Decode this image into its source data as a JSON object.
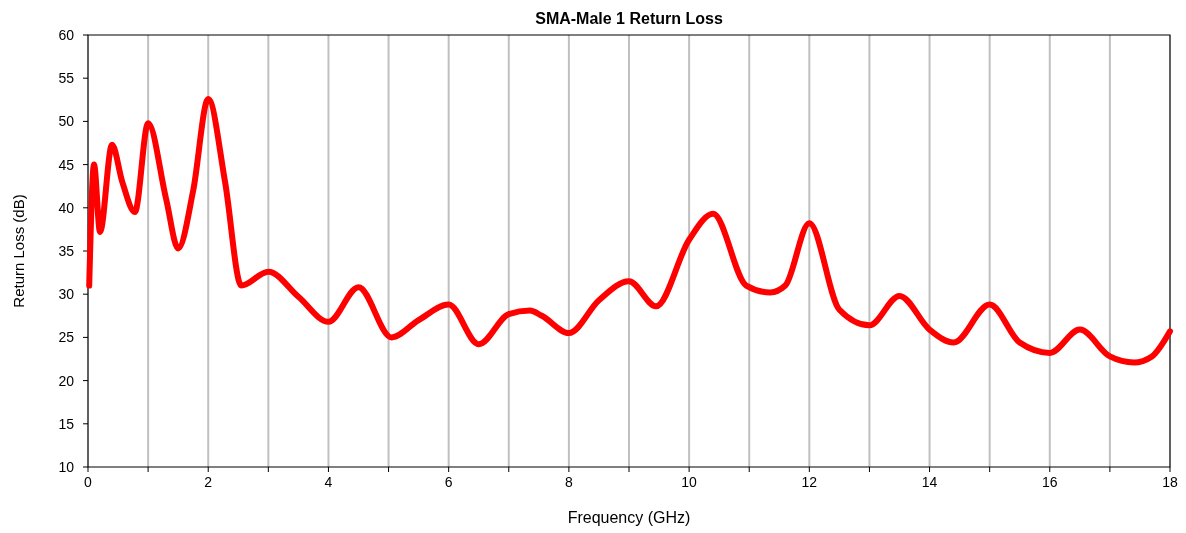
{
  "chart_data": {
    "type": "line",
    "title": "SMA-Male 1 Return Loss",
    "xlabel": "Frequency (GHz)",
    "ylabel": "Return Loss (dB)",
    "xlim": [
      0,
      18
    ],
    "ylim": [
      10,
      60
    ],
    "xticks": [
      0,
      {
        "value": 1,
        "label": null
      },
      2,
      {
        "value": 3,
        "label": null
      },
      4,
      {
        "value": 5,
        "label": null
      },
      6,
      {
        "value": 7,
        "label": null
      },
      8,
      {
        "value": 9,
        "label": null
      },
      10,
      {
        "value": 11,
        "label": null
      },
      12,
      {
        "value": 13,
        "label": null
      },
      14,
      {
        "value": 15,
        "label": null
      },
      16,
      {
        "value": 17,
        "label": null
      },
      18
    ],
    "yticks": [
      10,
      15,
      20,
      25,
      30,
      35,
      40,
      45,
      50,
      55,
      60
    ],
    "grid": "x",
    "marker": "none",
    "line_style": "solid",
    "series": [
      {
        "color": "#ff0000",
        "x": [
          0.02,
          0.1,
          0.2,
          0.4,
          0.57,
          0.78,
          1.0,
          1.3,
          1.5,
          1.75,
          2.0,
          2.28,
          2.55,
          3.0,
          3.5,
          4.0,
          4.5,
          5.05,
          5.5,
          6.0,
          6.5,
          7.0,
          7.35,
          7.55,
          8.0,
          8.5,
          9.0,
          9.45,
          10.0,
          10.4,
          10.95,
          11.35,
          11.6,
          12.0,
          12.5,
          13.0,
          13.5,
          14.0,
          14.4,
          15.0,
          15.5,
          16.0,
          16.5,
          17.0,
          17.4,
          17.7,
          18.0
        ],
        "values": [
          31,
          45,
          37.2,
          47.3,
          43,
          39.5,
          49.8,
          41,
          35.3,
          42,
          52.6,
          43,
          31,
          32.6,
          29.7,
          26.8,
          30.8,
          25,
          27,
          28.8,
          24.2,
          27.7,
          28.1,
          27.5,
          25.5,
          29.3,
          31.5,
          28.6,
          36.3,
          39.3,
          31,
          30.2,
          31,
          38.2,
          28.2,
          26.4,
          29.8,
          25.9,
          24.4,
          28.8,
          24.4,
          23.2,
          25.9,
          22.8,
          22.1,
          22.8,
          25.7
        ]
      }
    ]
  }
}
